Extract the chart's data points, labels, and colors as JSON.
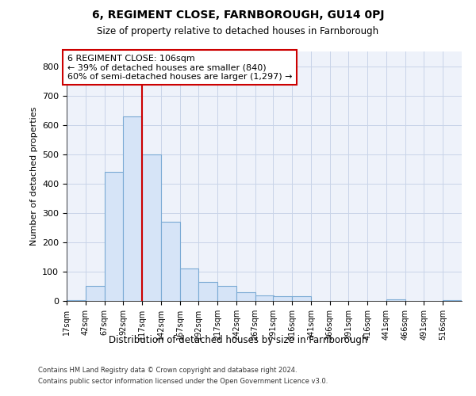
{
  "title": "6, REGIMENT CLOSE, FARNBOROUGH, GU14 0PJ",
  "subtitle": "Size of property relative to detached houses in Farnborough",
  "xlabel": "Distribution of detached houses by size in Farnborough",
  "ylabel": "Number of detached properties",
  "footer_line1": "Contains HM Land Registry data © Crown copyright and database right 2024.",
  "footer_line2": "Contains public sector information licensed under the Open Government Licence v3.0.",
  "bar_color": "#d6e4f7",
  "bar_edge_color": "#7aaad4",
  "grid_color": "#c8d4e8",
  "background_color": "#eef2fa",
  "annotation_box_color": "#cc0000",
  "annotation_text": "6 REGIMENT CLOSE: 106sqm\n← 39% of detached houses are smaller (840)\n60% of semi-detached houses are larger (1,297) →",
  "property_line_color": "#cc0000",
  "property_line_x": 117,
  "categories": [
    "17sqm",
    "42sqm",
    "67sqm",
    "92sqm",
    "117sqm",
    "142sqm",
    "167sqm",
    "192sqm",
    "217sqm",
    "242sqm",
    "267sqm",
    "291sqm",
    "316sqm",
    "341sqm",
    "366sqm",
    "391sqm",
    "416sqm",
    "441sqm",
    "466sqm",
    "491sqm",
    "516sqm"
  ],
  "bin_starts": [
    17,
    42,
    67,
    92,
    117,
    142,
    167,
    192,
    217,
    242,
    267,
    291,
    316,
    341,
    366,
    391,
    416,
    441,
    466,
    491,
    516
  ],
  "bin_width": 25,
  "values": [
    3,
    50,
    440,
    630,
    500,
    270,
    110,
    65,
    50,
    30,
    20,
    15,
    15,
    0,
    0,
    0,
    0,
    5,
    0,
    0,
    3
  ],
  "ylim": [
    0,
    850
  ],
  "yticks": [
    0,
    100,
    200,
    300,
    400,
    500,
    600,
    700,
    800
  ]
}
